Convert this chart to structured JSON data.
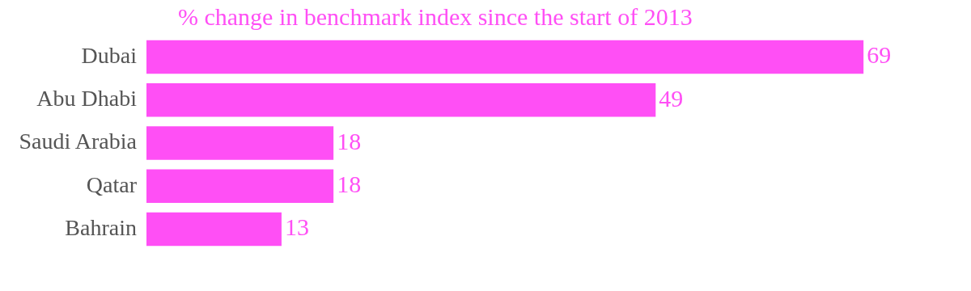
{
  "chart_data": {
    "type": "bar",
    "orientation": "horizontal",
    "title": "% change in benchmark index since the start of 2013",
    "categories": [
      "Dubai",
      "Abu Dhabi",
      "Saudi Arabia",
      "Qatar",
      "Bahrain"
    ],
    "values": [
      69,
      49,
      18,
      18,
      13
    ],
    "color": "#ff4ff5",
    "data_labels": true,
    "grid": false,
    "legend": false,
    "tick_labels": "y"
  }
}
